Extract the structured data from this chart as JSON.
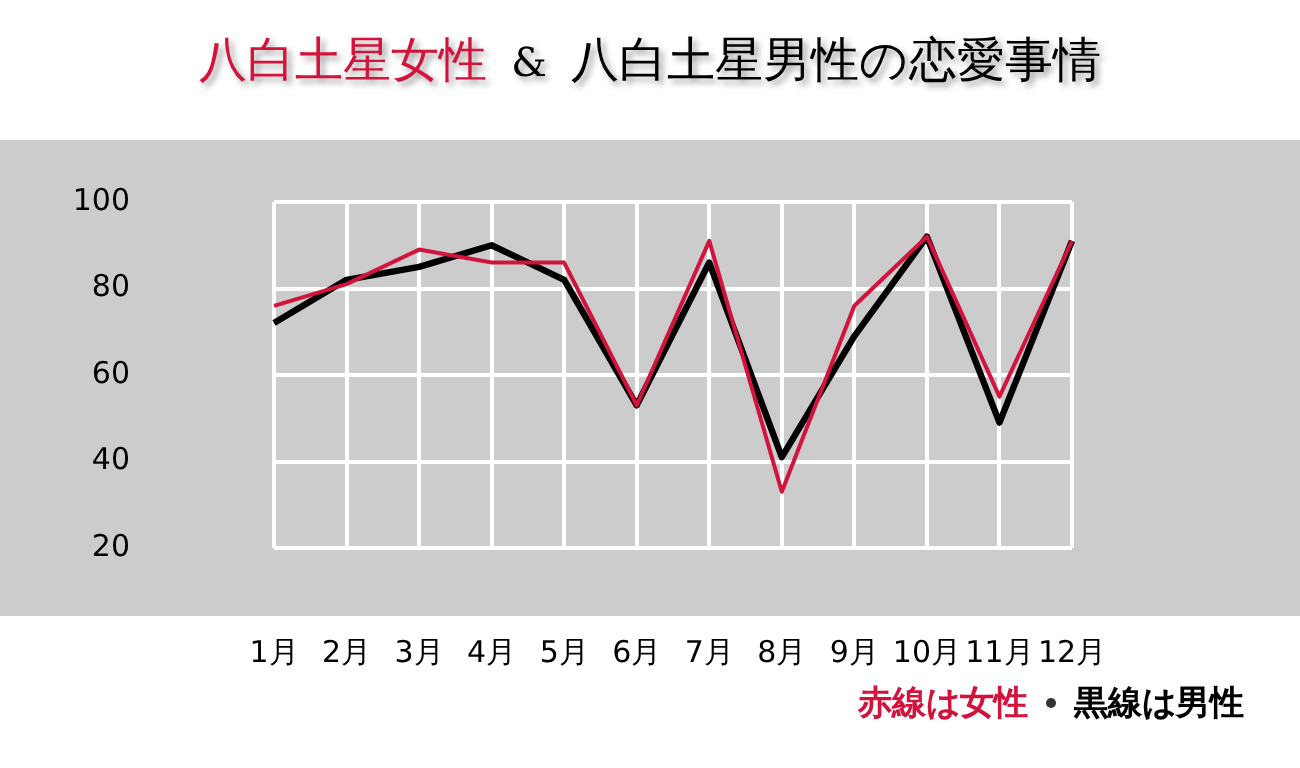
{
  "chart_data": {
    "type": "line",
    "title": "八白土星女性 & 八白土星男性の恋愛事情",
    "categories": [
      "1月",
      "2月",
      "3月",
      "4月",
      "5月",
      "6月",
      "7月",
      "8月",
      "9月",
      "10月",
      "11月",
      "12月"
    ],
    "series": [
      {
        "name": "赤線は女性",
        "color": "#d2143c",
        "values": [
          76,
          81,
          89,
          86,
          86,
          53,
          91,
          33,
          76,
          92,
          55,
          91
        ]
      },
      {
        "name": "黒線は男性",
        "color": "#000000",
        "values": [
          72,
          82,
          85,
          90,
          82,
          53,
          86,
          41,
          69,
          92,
          49,
          91
        ]
      }
    ],
    "ylim": [
      20,
      100
    ],
    "yticks": [
      20,
      40,
      60,
      80,
      100
    ],
    "grid": true,
    "legend": "bottom right",
    "marker": "none",
    "line_style": "solid"
  }
}
